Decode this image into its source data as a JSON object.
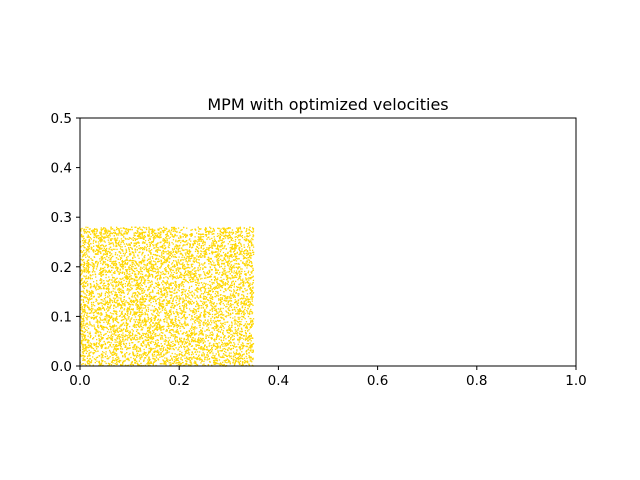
{
  "chart_data": {
    "type": "scatter",
    "title": "MPM with optimized velocities",
    "xlabel": "",
    "ylabel": "",
    "xlim": [
      0.0,
      1.0
    ],
    "ylim": [
      0.0,
      0.5
    ],
    "x_ticks": [
      "0.0",
      "0.2",
      "0.4",
      "0.6",
      "0.8",
      "1.0"
    ],
    "y_ticks": [
      "0.0",
      "0.1",
      "0.2",
      "0.3",
      "0.4",
      "0.5"
    ],
    "grid": false,
    "legend": "none",
    "point_color": "#ffd700",
    "series": [
      {
        "particle_region": {
          "x_range": [
            0.0,
            0.35
          ],
          "y_range": [
            0.0,
            0.28
          ]
        },
        "particle_count_estimate": 8000
      }
    ]
  }
}
